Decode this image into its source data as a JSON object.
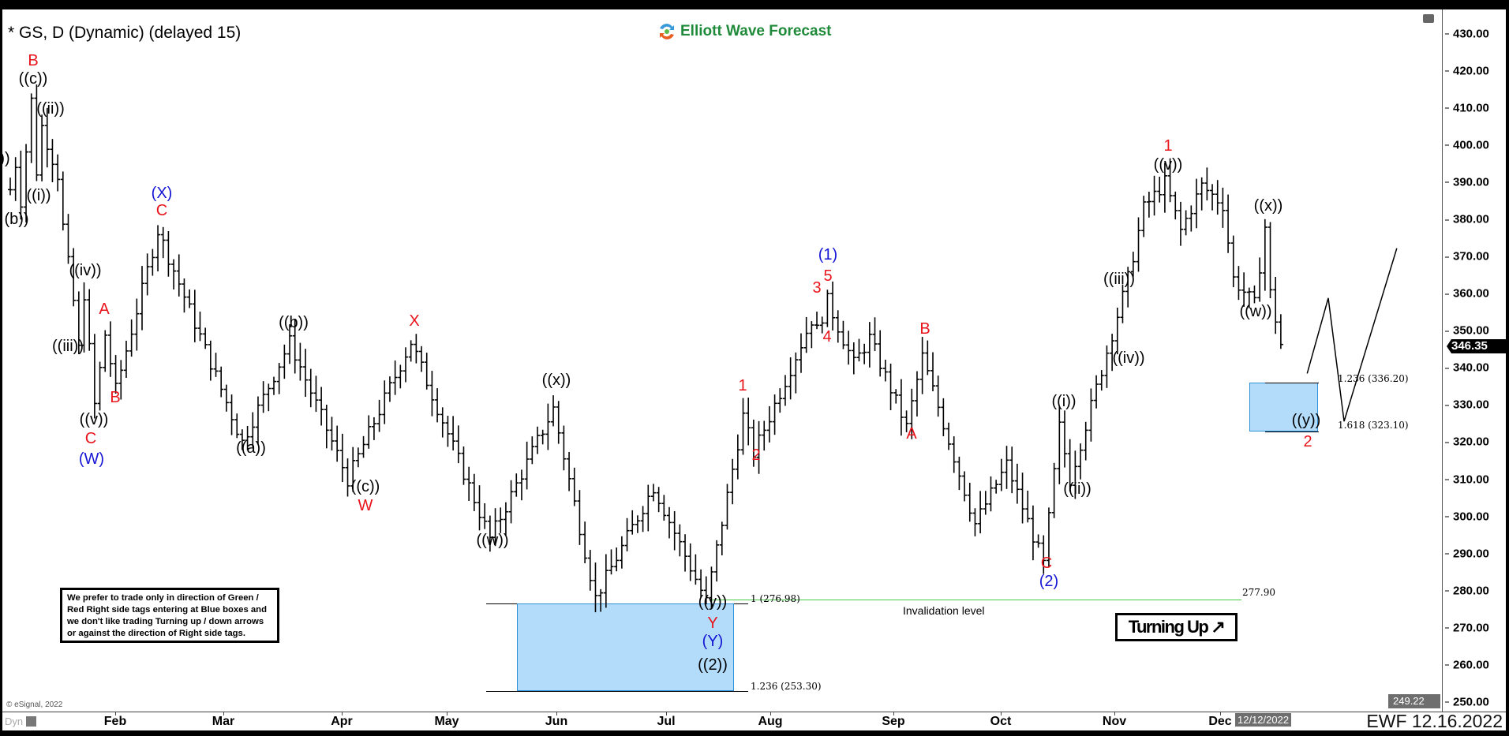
{
  "header": {
    "title": "* GS, D (Dynamic) (delayed 15)",
    "brand": "Elliott Wave Forecast",
    "footer_stamp": "EWF 12.16.2022",
    "copyright": "© eSignal, 2022",
    "mode_label": "Dyn",
    "cursor_date": "12/12/2022"
  },
  "note": "We prefer to trade only in direction of Green / Red Right side tags entering at Blue boxes and we don't like trading Turning up / down arrows or against the direction of Right side tags.",
  "turning_badge": {
    "label": "Turning Up",
    "arrow": "↗"
  },
  "colors": {
    "red": "#e8141b",
    "blue": "#1414d4",
    "black": "#000000",
    "invalidation": "#44cc44",
    "box": "#b3dcfb"
  },
  "annotations": {
    "fib_left_top": "1 (276.98)",
    "fib_left_bottom": "1.236 (253.30)",
    "fib_right_top": "1.236 (336.20)",
    "fib_right_bottom": "1.618 (323.10)",
    "invalidation_value": "277.90",
    "invalidation_label": "Invalidation level"
  },
  "labels": [
    {
      "text": "))",
      "color": "black"
    },
    {
      "text": "B",
      "color": "red"
    },
    {
      "text": "((c))",
      "color": "black"
    },
    {
      "text": "((ii))",
      "color": "black"
    },
    {
      "text": "((i))",
      "color": "black"
    },
    {
      "text": "(b))",
      "color": "black"
    },
    {
      "text": "(X)",
      "color": "blue"
    },
    {
      "text": "C",
      "color": "red"
    },
    {
      "text": "((iv))",
      "color": "black"
    },
    {
      "text": "((iii))",
      "color": "black"
    },
    {
      "text": "A",
      "color": "red"
    },
    {
      "text": "B",
      "color": "red"
    },
    {
      "text": "((v))",
      "color": "black"
    },
    {
      "text": "C",
      "color": "red"
    },
    {
      "text": "(W)",
      "color": "blue"
    },
    {
      "text": "((a))",
      "color": "black"
    },
    {
      "text": "((b))",
      "color": "black"
    },
    {
      "text": "X",
      "color": "red"
    },
    {
      "text": "((c))",
      "color": "black"
    },
    {
      "text": "W",
      "color": "red"
    },
    {
      "text": "((x))",
      "color": "black"
    },
    {
      "text": "((w))",
      "color": "black"
    },
    {
      "text": "((y))",
      "color": "black"
    },
    {
      "text": "Y",
      "color": "red"
    },
    {
      "text": "(Y)",
      "color": "blue"
    },
    {
      "text": "((2))",
      "color": "black"
    },
    {
      "text": "1",
      "color": "red"
    },
    {
      "text": "2",
      "color": "red"
    },
    {
      "text": "3",
      "color": "red"
    },
    {
      "text": "5",
      "color": "red"
    },
    {
      "text": "4",
      "color": "red"
    },
    {
      "text": "(1)",
      "color": "blue"
    },
    {
      "text": "B",
      "color": "red"
    },
    {
      "text": "A",
      "color": "red"
    },
    {
      "text": "C",
      "color": "red"
    },
    {
      "text": "(2)",
      "color": "blue"
    },
    {
      "text": "((i))",
      "color": "black"
    },
    {
      "text": "((ii))",
      "color": "black"
    },
    {
      "text": "((iii))",
      "color": "black"
    },
    {
      "text": "((iv))",
      "color": "black"
    },
    {
      "text": "1",
      "color": "red"
    },
    {
      "text": "((v))",
      "color": "black"
    },
    {
      "text": "((x))",
      "color": "black"
    },
    {
      "text": "((w))",
      "color": "black"
    },
    {
      "text": "((y))",
      "color": "black"
    },
    {
      "text": "2",
      "color": "red"
    }
  ],
  "chart_data": {
    "type": "ohlc",
    "symbol": "GS",
    "interval": "D",
    "ylim": [
      250,
      430
    ],
    "y_ticks": [
      "430.00",
      "420.00",
      "410.00",
      "400.00",
      "390.00",
      "380.00",
      "370.00",
      "360.00",
      "350.00",
      "340.00",
      "330.00",
      "320.00",
      "310.00",
      "300.00",
      "290.00",
      "280.00",
      "270.00",
      "260.00",
      "250.00"
    ],
    "x_ticks": [
      "Feb",
      "Mar",
      "Apr",
      "May",
      "Jun",
      "Jul",
      "Aug",
      "Sep",
      "Oct",
      "Nov",
      "Dec"
    ],
    "last_price": "346.35",
    "low_marker": "249.22",
    "approx_close_path": [
      [
        "2022-01-03",
        388
      ],
      [
        "2022-01-04",
        395
      ],
      [
        "2022-01-05",
        385
      ],
      [
        "2022-01-07",
        412
      ],
      [
        "2022-01-10",
        393
      ],
      [
        "2022-01-11",
        405
      ],
      [
        "2022-01-14",
        392
      ],
      [
        "2022-01-17",
        378
      ],
      [
        "2022-01-19",
        358
      ],
      [
        "2022-01-20",
        345
      ],
      [
        "2022-01-21",
        360
      ],
      [
        "2022-01-25",
        330
      ],
      [
        "2022-01-27",
        349
      ],
      [
        "2022-01-31",
        334
      ],
      [
        "2022-02-10",
        377
      ],
      [
        "2022-03-04",
        320
      ],
      [
        "2022-03-17",
        347
      ],
      [
        "2022-04-01",
        310
      ],
      [
        "2022-04-19",
        347
      ],
      [
        "2022-05-10",
        294
      ],
      [
        "2022-05-26",
        329
      ],
      [
        "2022-06-07",
        278
      ],
      [
        "2022-06-22",
        308
      ],
      [
        "2022-07-06",
        277
      ],
      [
        "2022-07-15",
        327
      ],
      [
        "2022-07-19",
        317
      ],
      [
        "2022-08-03",
        353
      ],
      [
        "2022-08-04",
        350
      ],
      [
        "2022-08-08",
        358
      ],
      [
        "2022-08-15",
        341
      ],
      [
        "2022-08-18",
        348
      ],
      [
        "2022-08-29",
        324
      ],
      [
        "2022-09-01",
        343
      ],
      [
        "2022-09-15",
        298
      ],
      [
        "2022-09-23",
        314
      ],
      [
        "2022-10-04",
        287
      ],
      [
        "2022-10-07",
        324
      ],
      [
        "2022-10-11",
        310
      ],
      [
        "2022-10-26",
        364
      ],
      [
        "2022-10-31",
        383
      ],
      [
        "2022-11-04",
        390
      ],
      [
        "2022-11-09",
        377
      ],
      [
        "2022-11-15",
        389
      ],
      [
        "2022-11-21",
        384
      ],
      [
        "2022-11-23",
        364
      ],
      [
        "2022-11-29",
        357
      ],
      [
        "2022-12-01",
        378
      ],
      [
        "2022-12-02",
        360
      ],
      [
        "2022-12-06",
        346.35
      ]
    ],
    "projection_path": [
      [
        "2022-12-08",
        338.5
      ],
      [
        "2022-12-14",
        358.8
      ],
      [
        "2022-12-19",
        325.6
      ],
      [
        "2023-01-02",
        372.2
      ]
    ],
    "zones": [
      {
        "top": 276.98,
        "bottom": 253.3
      },
      {
        "top": 336.2,
        "bottom": 323.1
      }
    ],
    "invalidation_level": 277.9
  }
}
